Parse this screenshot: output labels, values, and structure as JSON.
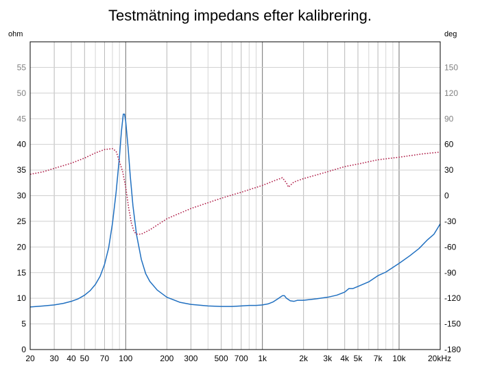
{
  "chart_data": {
    "type": "line",
    "title": "Testmätning impedans efter kalibrering.",
    "left_unit": "ohm",
    "right_unit": "deg",
    "x_scale": "log",
    "xlim": [
      20,
      20000
    ],
    "ylim_left": [
      0,
      60
    ],
    "ylim_right": [
      -180,
      180
    ],
    "grid": true,
    "x_ticks": [
      {
        "value": 20,
        "label": "20"
      },
      {
        "value": 30,
        "label": "30"
      },
      {
        "value": 40,
        "label": "40"
      },
      {
        "value": 50,
        "label": "50"
      },
      {
        "value": 70,
        "label": "70"
      },
      {
        "value": 100,
        "label": "100"
      },
      {
        "value": 200,
        "label": "200"
      },
      {
        "value": 300,
        "label": "300"
      },
      {
        "value": 500,
        "label": "500"
      },
      {
        "value": 700,
        "label": "700"
      },
      {
        "value": 1000,
        "label": "1k"
      },
      {
        "value": 2000,
        "label": "2k"
      },
      {
        "value": 3000,
        "label": "3k"
      },
      {
        "value": 4000,
        "label": "4k"
      },
      {
        "value": 5000,
        "label": "5k"
      },
      {
        "value": 7000,
        "label": "7k"
      },
      {
        "value": 10000,
        "label": "10k"
      },
      {
        "value": 20000,
        "label": "20kHz"
      }
    ],
    "left_ticks": [
      {
        "value": 0,
        "label": "0"
      },
      {
        "value": 5,
        "label": "5"
      },
      {
        "value": 10,
        "label": "10"
      },
      {
        "value": 15,
        "label": "15"
      },
      {
        "value": 20,
        "label": "20"
      },
      {
        "value": 25,
        "label": "25"
      },
      {
        "value": 30,
        "label": "30"
      },
      {
        "value": 35,
        "label": "35"
      },
      {
        "value": 40,
        "label": "40"
      },
      {
        "value": 45,
        "label": "45"
      },
      {
        "value": 50,
        "label": "50"
      },
      {
        "value": 55,
        "label": "55"
      }
    ],
    "right_ticks": [
      {
        "value": -180,
        "label": "-180"
      },
      {
        "value": -150,
        "label": "-150"
      },
      {
        "value": -120,
        "label": "-120"
      },
      {
        "value": -90,
        "label": "-90"
      },
      {
        "value": -60,
        "label": "-60"
      },
      {
        "value": -30,
        "label": "-30"
      },
      {
        "value": 0,
        "label": "0"
      },
      {
        "value": 30,
        "label": "30"
      },
      {
        "value": 60,
        "label": "60"
      },
      {
        "value": 90,
        "label": "90"
      },
      {
        "value": 120,
        "label": "120"
      },
      {
        "value": 150,
        "label": "150"
      }
    ],
    "series": [
      {
        "axis": "left",
        "color": "#1f6fc0",
        "style": "solid",
        "points": [
          [
            20,
            8.3
          ],
          [
            25,
            8.5
          ],
          [
            30,
            8.7
          ],
          [
            35,
            9.0
          ],
          [
            40,
            9.4
          ],
          [
            45,
            9.9
          ],
          [
            50,
            10.6
          ],
          [
            55,
            11.5
          ],
          [
            60,
            12.7
          ],
          [
            65,
            14.3
          ],
          [
            70,
            16.6
          ],
          [
            75,
            19.8
          ],
          [
            80,
            24.6
          ],
          [
            85,
            30.6
          ],
          [
            90,
            37.6
          ],
          [
            93,
            42.5
          ],
          [
            96,
            45.9
          ],
          [
            98,
            45.9
          ],
          [
            100,
            44.5
          ],
          [
            104,
            39.5
          ],
          [
            108,
            33.8
          ],
          [
            113,
            28.0
          ],
          [
            120,
            22.4
          ],
          [
            130,
            17.6
          ],
          [
            140,
            14.8
          ],
          [
            150,
            13.3
          ],
          [
            170,
            11.6
          ],
          [
            200,
            10.2
          ],
          [
            250,
            9.2
          ],
          [
            300,
            8.8
          ],
          [
            400,
            8.5
          ],
          [
            500,
            8.4
          ],
          [
            600,
            8.4
          ],
          [
            700,
            8.5
          ],
          [
            800,
            8.6
          ],
          [
            900,
            8.6
          ],
          [
            1000,
            8.7
          ],
          [
            1100,
            8.9
          ],
          [
            1200,
            9.3
          ],
          [
            1300,
            9.9
          ],
          [
            1400,
            10.5
          ],
          [
            1450,
            10.5
          ],
          [
            1500,
            10.0
          ],
          [
            1600,
            9.5
          ],
          [
            1700,
            9.4
          ],
          [
            1800,
            9.6
          ],
          [
            2000,
            9.6
          ],
          [
            2500,
            9.9
          ],
          [
            3000,
            10.2
          ],
          [
            3500,
            10.6
          ],
          [
            4000,
            11.2
          ],
          [
            4300,
            11.9
          ],
          [
            4600,
            11.9
          ],
          [
            5000,
            12.3
          ],
          [
            6000,
            13.2
          ],
          [
            7000,
            14.4
          ],
          [
            8000,
            15.1
          ],
          [
            9000,
            16.0
          ],
          [
            10000,
            16.8
          ],
          [
            12000,
            18.3
          ],
          [
            14000,
            19.7
          ],
          [
            16000,
            21.3
          ],
          [
            18000,
            22.5
          ],
          [
            20000,
            24.5
          ]
        ]
      },
      {
        "axis": "right",
        "color": "#b0204a",
        "style": "dotted",
        "points": [
          [
            20,
            25
          ],
          [
            25,
            28
          ],
          [
            30,
            32
          ],
          [
            40,
            38
          ],
          [
            50,
            44
          ],
          [
            60,
            50
          ],
          [
            70,
            54
          ],
          [
            80,
            55
          ],
          [
            85,
            52
          ],
          [
            90,
            40
          ],
          [
            95,
            28
          ],
          [
            100,
            10
          ],
          [
            105,
            -14
          ],
          [
            110,
            -32
          ],
          [
            115,
            -42
          ],
          [
            120,
            -45
          ],
          [
            130,
            -45
          ],
          [
            150,
            -40
          ],
          [
            200,
            -27
          ],
          [
            300,
            -15
          ],
          [
            500,
            -3
          ],
          [
            700,
            4
          ],
          [
            1000,
            12
          ],
          [
            1200,
            17
          ],
          [
            1400,
            21
          ],
          [
            1500,
            15
          ],
          [
            1550,
            10
          ],
          [
            1600,
            12
          ],
          [
            1700,
            16
          ],
          [
            2000,
            20
          ],
          [
            3000,
            28
          ],
          [
            4000,
            34
          ],
          [
            5000,
            37
          ],
          [
            7000,
            42
          ],
          [
            10000,
            45
          ],
          [
            15000,
            49
          ],
          [
            20000,
            51
          ]
        ]
      }
    ]
  }
}
